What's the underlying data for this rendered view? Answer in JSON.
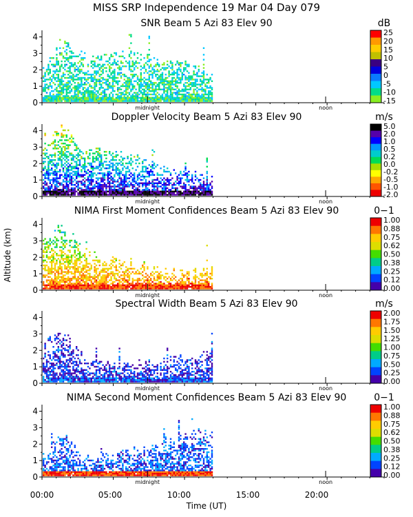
{
  "figure": {
    "title": "MISS SRP Independence  19 Mar 04 Day 079",
    "ylabel": "Altitude (km)",
    "xlabel": "Time (UT)",
    "xticks": [
      "00:00",
      "05:00",
      "10:00",
      "15:00",
      "20:00"
    ],
    "marker_labels": {
      "midnight": "midnight",
      "noon": "noon"
    }
  },
  "chart_data": [
    {
      "type": "heatmap",
      "title": "SNR Beam 5 Azi  83 Elev 90",
      "colorbar_unit": "dB",
      "colorbar_ticks": [
        "25",
        "20",
        "15",
        "10",
        "5",
        "0",
        "-5",
        "-10",
        "-15"
      ],
      "colors": [
        "#ff0000",
        "#ff9900",
        "#ffcc00",
        "#c0c000",
        "#3a0080",
        "#0000dd",
        "#0a7bff",
        "#00c8ff",
        "#00dd88",
        "#88ee22"
      ],
      "xlim": [
        0,
        24
      ],
      "ylim": [
        0,
        4.4
      ],
      "yticks": [
        "0",
        "1",
        "2",
        "3",
        "4"
      ],
      "data_extent_hours": [
        0,
        11.9
      ]
    },
    {
      "type": "heatmap",
      "title": "Doppler Velocity Beam 5 Azi  83 Elev 90",
      "colorbar_unit": "m/s",
      "colorbar_ticks": [
        "5.0",
        "2.0",
        "1.0",
        "0.5",
        "0.2",
        "0.0",
        "-0.2",
        "-0.5",
        "-1.0",
        "-2.0"
      ],
      "colors": [
        "#000000",
        "#5500aa",
        "#0000ff",
        "#0099ff",
        "#00cccc",
        "#00dd55",
        "#aadd00",
        "#ffff00",
        "#ffaa00",
        "#ff5500",
        "#ee0000"
      ],
      "xlim": [
        0,
        24
      ],
      "ylim": [
        0,
        4.4
      ],
      "yticks": [
        "0",
        "1",
        "2",
        "3",
        "4"
      ],
      "data_extent_hours": [
        0,
        11.9
      ]
    },
    {
      "type": "heatmap",
      "title": "NIMA First Moment Confidences Beam 5 Azi  83 Elev 90",
      "colorbar_unit": "0−1",
      "colorbar_ticks": [
        "1.00",
        "0.88",
        "0.75",
        "0.62",
        "0.50",
        "0.38",
        "0.25",
        "0.12",
        "0.00"
      ],
      "colors": [
        "#ee0000",
        "#ff7700",
        "#ffcc00",
        "#dddd00",
        "#44dd00",
        "#00cc88",
        "#00aaff",
        "#0044ff",
        "#4400aa"
      ],
      "xlim": [
        0,
        24
      ],
      "ylim": [
        0,
        4.4
      ],
      "yticks": [
        "0",
        "1",
        "2",
        "3",
        "4"
      ],
      "data_extent_hours": [
        0,
        11.9
      ]
    },
    {
      "type": "heatmap",
      "title": "Spectral Width Beam 5 Azi  83 Elev 90",
      "colorbar_unit": "m/s",
      "colorbar_ticks": [
        "2.00",
        "1.75",
        "1.50",
        "1.25",
        "1.00",
        "0.75",
        "0.50",
        "0.25",
        "0.00"
      ],
      "colors": [
        "#ee0000",
        "#ff7700",
        "#ffcc00",
        "#dddd00",
        "#44dd00",
        "#00cc88",
        "#00aaff",
        "#0044ff",
        "#4400aa"
      ],
      "xlim": [
        0,
        24
      ],
      "ylim": [
        0,
        4.4
      ],
      "yticks": [
        "0",
        "1",
        "2",
        "3",
        "4"
      ],
      "data_extent_hours": [
        0,
        11.9
      ]
    },
    {
      "type": "heatmap",
      "title": "NIMA Second Moment Confidences Beam 5 Azi  83 Elev 90",
      "colorbar_unit": "0−1",
      "colorbar_ticks": [
        "1.00",
        "0.88",
        "0.75",
        "0.62",
        "0.50",
        "0.38",
        "0.25",
        "0.12",
        "0.00"
      ],
      "colors": [
        "#ee0000",
        "#ff7700",
        "#ffcc00",
        "#dddd00",
        "#44dd00",
        "#00cc88",
        "#00aaff",
        "#0044ff",
        "#4400aa"
      ],
      "xlim": [
        0,
        24
      ],
      "ylim": [
        0,
        4.4
      ],
      "yticks": [
        "0",
        "1",
        "2",
        "3",
        "4"
      ],
      "data_extent_hours": [
        0,
        11.9
      ]
    }
  ]
}
